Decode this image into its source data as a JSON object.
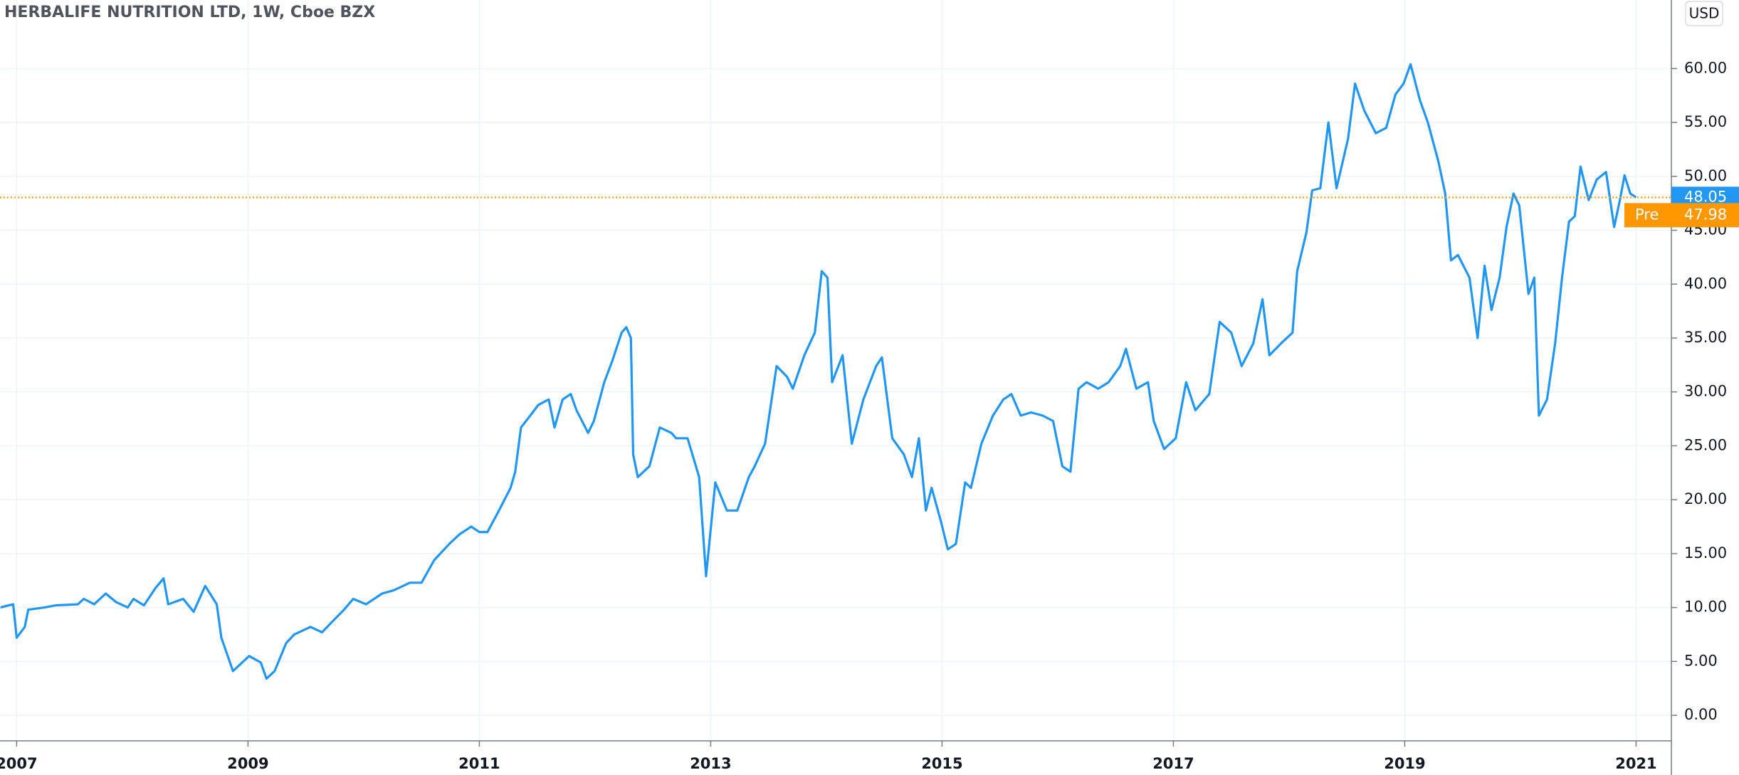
{
  "chart_data": {
    "type": "line",
    "title": "HERBALIFE NUTRITION LTD, 1W, Cboe BZX",
    "currency": "USD",
    "x": [
      2006.86,
      2006.97,
      2007.0,
      2007.07,
      2007.1,
      2007.24,
      2007.34,
      2007.53,
      2007.58,
      2007.67,
      2007.77,
      2007.86,
      2007.96,
      2008.01,
      2008.1,
      2008.2,
      2008.27,
      2008.31,
      2008.44,
      2008.53,
      2008.63,
      2008.73,
      2008.77,
      2008.87,
      2008.92,
      2009.01,
      2009.11,
      2009.16,
      2009.23,
      2009.33,
      2009.4,
      2009.54,
      2009.64,
      2009.73,
      2009.83,
      2009.91,
      2010.02,
      2010.16,
      2010.26,
      2010.4,
      2010.5,
      2010.61,
      2010.74,
      2010.83,
      2010.93,
      2011.0,
      2011.07,
      2011.17,
      2011.27,
      2011.31,
      2011.36,
      2011.44,
      2011.51,
      2011.6,
      2011.65,
      2011.72,
      2011.79,
      2011.84,
      2011.94,
      2011.99,
      2012.08,
      2012.15,
      2012.23,
      2012.27,
      2012.31,
      2012.33,
      2012.37,
      2012.47,
      2012.56,
      2012.66,
      2012.7,
      2012.8,
      2012.9,
      2012.96,
      2013.04,
      2013.14,
      2013.23,
      2013.33,
      2013.38,
      2013.47,
      2013.57,
      2013.66,
      2013.71,
      2013.81,
      2013.9,
      2013.96,
      2014.01,
      2014.05,
      2014.14,
      2014.22,
      2014.32,
      2014.43,
      2014.48,
      2014.57,
      2014.67,
      2014.74,
      2014.8,
      2014.86,
      2014.91,
      2014.99,
      2015.05,
      2015.12,
      2015.2,
      2015.25,
      2015.34,
      2015.44,
      2015.53,
      2015.6,
      2015.68,
      2015.77,
      2015.87,
      2015.96,
      2016.04,
      2016.11,
      2016.18,
      2016.25,
      2016.35,
      2016.44,
      2016.54,
      2016.59,
      2016.68,
      2016.78,
      2016.83,
      2016.92,
      2017.02,
      2017.11,
      2017.19,
      2017.31,
      2017.4,
      2017.5,
      2017.59,
      2017.69,
      2017.77,
      2017.83,
      2017.93,
      2018.03,
      2018.07,
      2018.15,
      2018.2,
      2018.27,
      2018.34,
      2018.41,
      2018.51,
      2018.57,
      2018.65,
      2018.75,
      2018.84,
      2018.92,
      2018.99,
      2019.05,
      2019.13,
      2019.2,
      2019.29,
      2019.35,
      2019.4,
      2019.46,
      2019.56,
      2019.63,
      2019.69,
      2019.75,
      2019.82,
      2019.88,
      2019.94,
      2019.99,
      2020.07,
      2020.12,
      2020.16,
      2020.23,
      2020.3,
      2020.36,
      2020.42,
      2020.47,
      2020.52,
      2020.59,
      2020.66,
      2020.74,
      2020.81,
      2020.86,
      2020.9,
      2020.95,
      2021.0
    ],
    "values": [
      10.0,
      10.3,
      7.2,
      8.2,
      9.8,
      10.0,
      10.2,
      10.3,
      10.8,
      10.3,
      11.3,
      10.5,
      10.0,
      10.8,
      10.2,
      11.8,
      12.7,
      10.3,
      10.8,
      9.6,
      12.0,
      10.3,
      7.2,
      4.1,
      4.6,
      5.5,
      4.9,
      3.4,
      4.1,
      6.7,
      7.5,
      8.2,
      7.7,
      8.7,
      9.8,
      10.8,
      10.3,
      11.3,
      11.6,
      12.3,
      12.3,
      14.4,
      15.9,
      16.8,
      17.5,
      17.0,
      17.0,
      19.0,
      21.1,
      22.6,
      26.7,
      27.8,
      28.8,
      29.3,
      26.7,
      29.3,
      29.8,
      28.3,
      26.2,
      27.3,
      30.9,
      32.9,
      35.5,
      36.0,
      35.0,
      24.2,
      22.1,
      23.1,
      26.7,
      26.2,
      25.7,
      25.7,
      22.1,
      12.9,
      21.6,
      19.0,
      19.0,
      22.1,
      23.1,
      25.2,
      32.4,
      31.4,
      30.3,
      33.4,
      35.5,
      41.2,
      40.6,
      30.9,
      33.4,
      25.2,
      29.3,
      32.4,
      33.2,
      25.7,
      24.2,
      22.1,
      25.7,
      19.0,
      21.1,
      18.0,
      15.4,
      15.9,
      21.6,
      21.1,
      25.2,
      27.8,
      29.3,
      29.8,
      27.8,
      28.1,
      27.8,
      27.3,
      23.1,
      22.6,
      30.3,
      30.9,
      30.3,
      30.9,
      32.4,
      34.0,
      30.3,
      30.9,
      27.3,
      24.7,
      25.7,
      30.9,
      28.3,
      29.8,
      36.5,
      35.5,
      32.4,
      34.5,
      38.6,
      33.4,
      34.5,
      35.5,
      41.2,
      44.8,
      48.7,
      48.9,
      55.0,
      48.9,
      53.5,
      58.6,
      56.1,
      54.0,
      54.5,
      57.6,
      58.6,
      60.4,
      57.1,
      55.0,
      51.4,
      48.4,
      42.2,
      42.7,
      40.6,
      35.0,
      41.7,
      37.6,
      40.6,
      45.3,
      48.4,
      47.3,
      39.1,
      40.6,
      27.8,
      29.3,
      34.5,
      40.6,
      45.8,
      46.3,
      50.9,
      47.8,
      49.7,
      50.4,
      45.3,
      47.8,
      50.1,
      48.4,
      48.05
    ],
    "color": "#2196f3",
    "last_price": 48.05,
    "last_price_color": "#2196f3",
    "pre_market": {
      "label": "Pre",
      "value": 47.98
    },
    "pre_market_color": "#ff9800",
    "xlim": [
      2006.856,
      2021.305
    ],
    "xticks": [
      2007,
      2009,
      2011,
      2013,
      2015,
      2017,
      2019,
      2021
    ],
    "ylim": [
      -2.37,
      66.36
    ],
    "yticks": [
      {
        "value": 0,
        "label": "0.00"
      },
      {
        "value": 5,
        "label": "5.00"
      },
      {
        "value": 10,
        "label": "10.00"
      },
      {
        "value": 15,
        "label": "15.00"
      },
      {
        "value": 20,
        "label": "20.00"
      },
      {
        "value": 25,
        "label": "25.00"
      },
      {
        "value": 30,
        "label": "30.00"
      },
      {
        "value": 35,
        "label": "35.00"
      },
      {
        "value": 40,
        "label": "40.00"
      },
      {
        "value": 45,
        "label": "45.00"
      },
      {
        "value": 50,
        "label": "50.00"
      },
      {
        "value": 55,
        "label": "55.00"
      },
      {
        "value": 60,
        "label": "60.00"
      }
    ],
    "grid": true
  }
}
